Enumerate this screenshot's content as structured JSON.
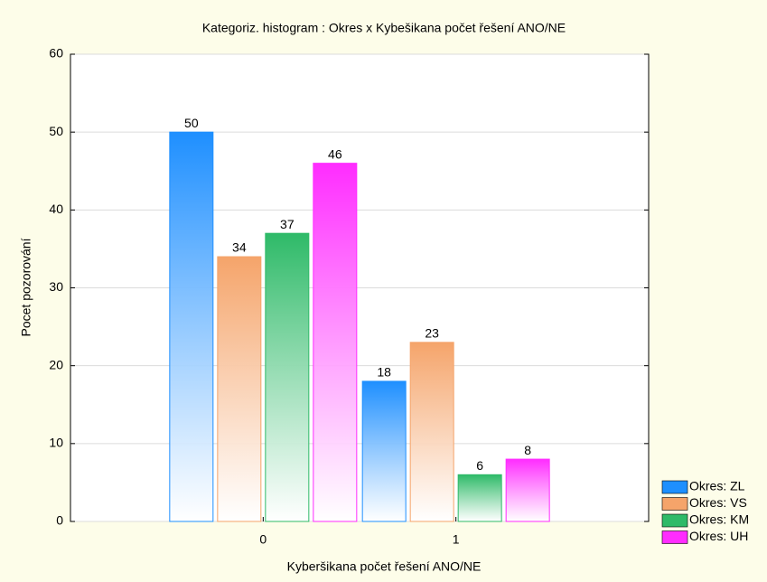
{
  "chart_data": {
    "type": "bar",
    "title": "Kategoriz. histogram : Okres x Kybešikana počet řešení ANO/NE",
    "x_label": "Kyberšikana počet řešení ANO/NE",
    "y_label": "Pocet pozorování",
    "categories": [
      "0",
      "1"
    ],
    "series": [
      {
        "name": "Okres: ZL",
        "color": "#1e8fff",
        "values": [
          50,
          18
        ]
      },
      {
        "name": "Okres: VS",
        "color": "#f5a46a",
        "values": [
          34,
          23
        ]
      },
      {
        "name": "Okres: KM",
        "color": "#2eba68",
        "values": [
          37,
          6
        ]
      },
      {
        "name": "Okres: UH",
        "color": "#ff2cff",
        "values": [
          46,
          8
        ]
      }
    ],
    "ylim": [
      0,
      60
    ],
    "yticks": [
      0,
      10,
      20,
      30,
      40,
      50,
      60
    ],
    "grid": true,
    "legend": "bottom-right"
  }
}
